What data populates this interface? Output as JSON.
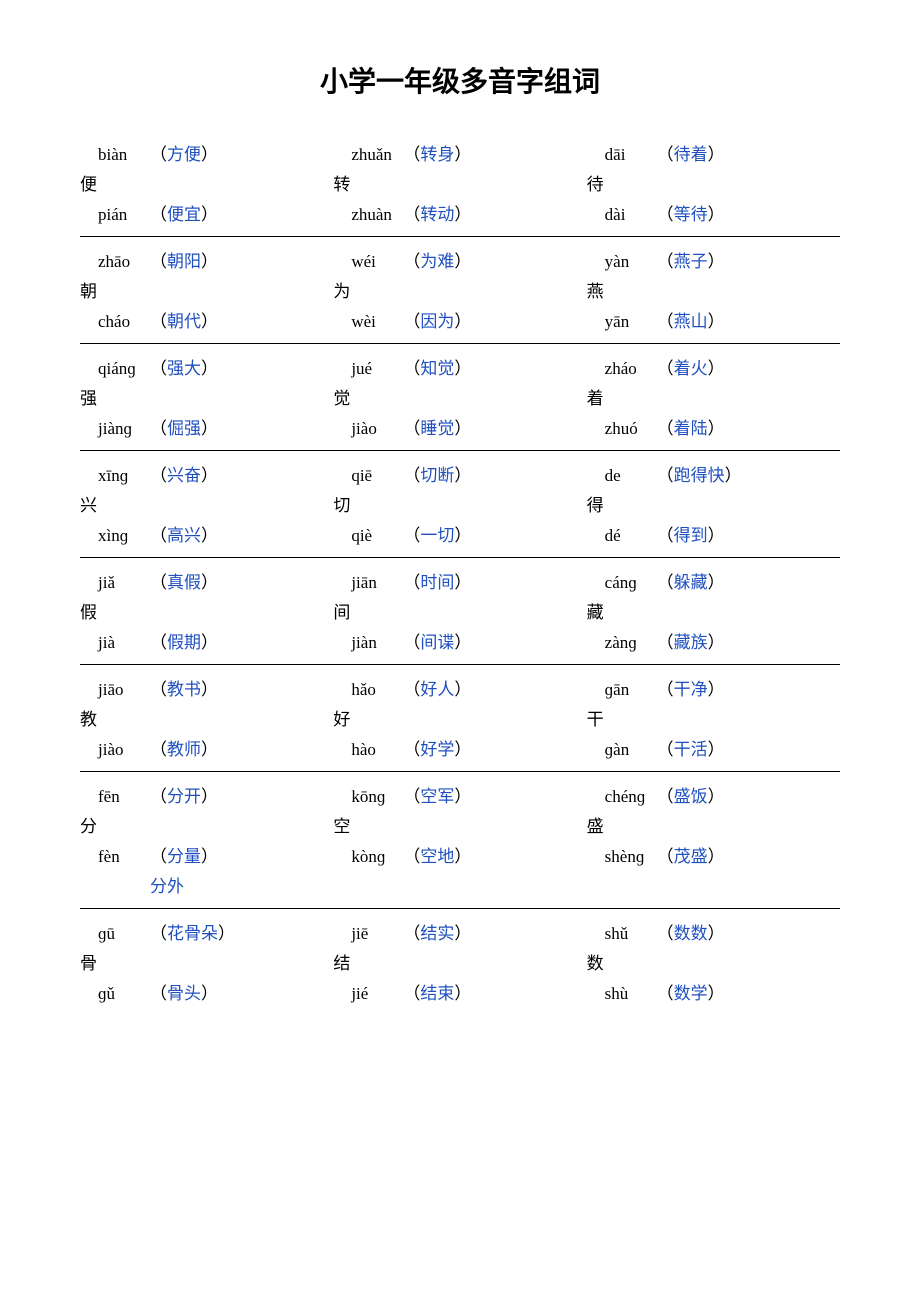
{
  "title": "小学一年级多音字组词",
  "colors": {
    "text": "#000000",
    "word": "#2050c0",
    "background": "#ffffff",
    "rule": "#000000"
  },
  "rows": [
    {
      "cells": [
        {
          "hanzi": "便",
          "r": [
            {
              "pinyin": "biàn",
              "word": "方便"
            },
            {
              "pinyin": "pián",
              "word": "便宜"
            }
          ]
        },
        {
          "hanzi": "转",
          "r": [
            {
              "pinyin": "zhuǎn",
              "word": "转身"
            },
            {
              "pinyin": "zhuàn",
              "word": "转动"
            }
          ]
        },
        {
          "hanzi": "待",
          "r": [
            {
              "pinyin": "dāi",
              "word": "待着"
            },
            {
              "pinyin": "dài",
              "word": "等待"
            }
          ]
        }
      ]
    },
    {
      "cells": [
        {
          "hanzi": "朝",
          "r": [
            {
              "pinyin": "zhāo",
              "word": "朝阳"
            },
            {
              "pinyin": "cháo",
              "word": "朝代"
            }
          ]
        },
        {
          "hanzi": "为",
          "r": [
            {
              "pinyin": "wéi",
              "word": "为难"
            },
            {
              "pinyin": "wèi",
              "word": "因为"
            }
          ]
        },
        {
          "hanzi": "燕",
          "r": [
            {
              "pinyin": "yàn",
              "word": "燕子"
            },
            {
              "pinyin": "yān",
              "word": "燕山"
            }
          ]
        }
      ]
    },
    {
      "cells": [
        {
          "hanzi": "强",
          "r": [
            {
              "pinyin": "qiánɡ",
              "word": "强大"
            },
            {
              "pinyin": "jiànɡ",
              "word": "倔强"
            }
          ]
        },
        {
          "hanzi": "觉",
          "r": [
            {
              "pinyin": "jué",
              "word": "知觉"
            },
            {
              "pinyin": "jiào",
              "word": "睡觉"
            }
          ]
        },
        {
          "hanzi": "着",
          "r": [
            {
              "pinyin": "zháo",
              "word": "着火"
            },
            {
              "pinyin": "zhuó",
              "word": "着陆"
            }
          ]
        }
      ]
    },
    {
      "cells": [
        {
          "hanzi": "兴",
          "r": [
            {
              "pinyin": "xīnɡ",
              "word": "兴奋"
            },
            {
              "pinyin": "xìnɡ",
              "word": "高兴"
            }
          ]
        },
        {
          "hanzi": "切",
          "r": [
            {
              "pinyin": "qiē",
              "word": "切断"
            },
            {
              "pinyin": "qiè",
              "word": "一切"
            }
          ]
        },
        {
          "hanzi": "得",
          "r": [
            {
              "pinyin": "de",
              "word": "跑得快"
            },
            {
              "pinyin": "dé",
              "word": "得到"
            }
          ]
        }
      ]
    },
    {
      "cells": [
        {
          "hanzi": "假",
          "r": [
            {
              "pinyin": "jiǎ",
              "word": "真假"
            },
            {
              "pinyin": "jià",
              "word": "假期"
            }
          ]
        },
        {
          "hanzi": "间",
          "r": [
            {
              "pinyin": "jiān",
              "word": "时间"
            },
            {
              "pinyin": "jiàn",
              "word": "间谍"
            }
          ]
        },
        {
          "hanzi": "藏",
          "r": [
            {
              "pinyin": "cánɡ",
              "word": "躲藏"
            },
            {
              "pinyin": "zànɡ",
              "word": "藏族"
            }
          ]
        }
      ]
    },
    {
      "cells": [
        {
          "hanzi": "教",
          "r": [
            {
              "pinyin": "jiāo",
              "word": "教书"
            },
            {
              "pinyin": "jiào",
              "word": "教师"
            }
          ]
        },
        {
          "hanzi": "好",
          "r": [
            {
              "pinyin": "hǎo",
              "word": "好人"
            },
            {
              "pinyin": "hào",
              "word": "好学"
            }
          ]
        },
        {
          "hanzi": "干",
          "r": [
            {
              "pinyin": "ɡān",
              "word": "干净"
            },
            {
              "pinyin": "ɡàn",
              "word": "干活"
            }
          ]
        }
      ]
    },
    {
      "cells": [
        {
          "hanzi": "分",
          "r": [
            {
              "pinyin": "fēn",
              "word": "分开"
            },
            {
              "pinyin": "fèn",
              "word": "分量"
            }
          ],
          "extra": "分外"
        },
        {
          "hanzi": "空",
          "r": [
            {
              "pinyin": "kōnɡ",
              "word": "空军"
            },
            {
              "pinyin": "kònɡ",
              "word": "空地"
            }
          ]
        },
        {
          "hanzi": "盛",
          "r": [
            {
              "pinyin": "chénɡ",
              "word": "盛饭"
            },
            {
              "pinyin": "shènɡ",
              "word": "茂盛"
            }
          ]
        }
      ]
    },
    {
      "cells": [
        {
          "hanzi": "骨",
          "r": [
            {
              "pinyin": "ɡū",
              "word": "花骨朵"
            },
            {
              "pinyin": "ɡǔ",
              "word": "骨头"
            }
          ]
        },
        {
          "hanzi": "结",
          "r": [
            {
              "pinyin": "jiē",
              "word": "结实"
            },
            {
              "pinyin": "jié",
              "word": "结束"
            }
          ]
        },
        {
          "hanzi": "数",
          "r": [
            {
              "pinyin": "shǔ",
              "word": "数数"
            },
            {
              "pinyin": "shù",
              "word": "数学"
            }
          ]
        }
      ],
      "noBorder": true
    }
  ]
}
